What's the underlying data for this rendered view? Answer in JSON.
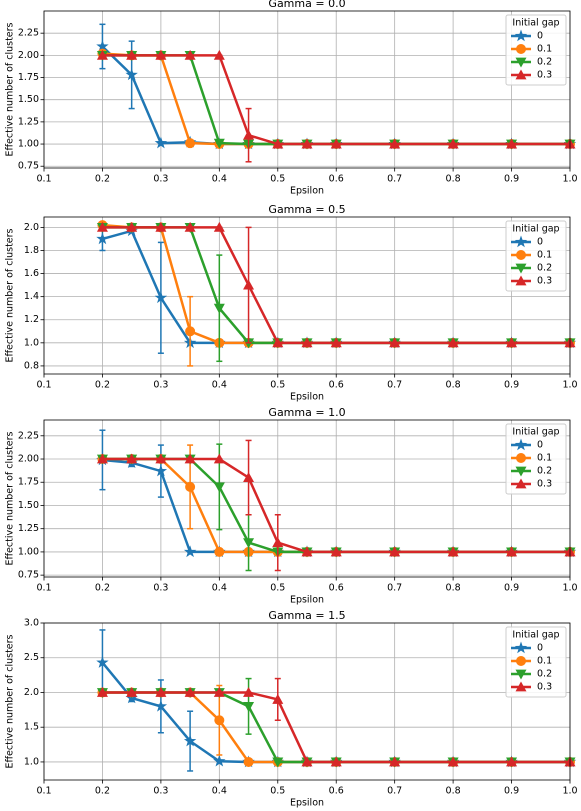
{
  "chart_data": [
    {
      "type": "line",
      "title": "Gamma = 0.0",
      "xlabel": "Epsilon",
      "ylabel": "Effective number of clusters",
      "x": [
        0.2,
        0.25,
        0.3,
        0.35,
        0.4,
        0.45,
        0.5,
        0.55,
        0.6,
        0.7,
        0.8,
        0.9,
        1.0
      ],
      "xlim": [
        0.1,
        1.0
      ],
      "xticks": [
        0.1,
        0.2,
        0.3,
        0.4,
        0.5,
        0.6,
        0.7,
        0.8,
        0.9,
        {
          "value": 1,
          "label": "1.0"
        }
      ],
      "ylim": [
        0.73,
        2.5
      ],
      "yticks": [
        0.75,
        {
          "value": 1,
          "label": "1.00"
        },
        1.25,
        {
          "value": 1.5,
          "label": "1.50"
        },
        1.75,
        {
          "value": 2,
          "label": "2.00"
        },
        2.25
      ],
      "grid": true,
      "legend_title": "Initial gap",
      "legend": "upper right",
      "series": [
        {
          "name": "0",
          "color": "#1f77b4",
          "marker": "star",
          "values": [
            2.1,
            1.78,
            1.01,
            1.02,
            1.0,
            1.0,
            1.0,
            1.0,
            1.0,
            1.0,
            1.0,
            1.0,
            1.0
          ],
          "errors": [
            0.25,
            0.38,
            0,
            0,
            0,
            0,
            0,
            0,
            0,
            0,
            0,
            0,
            0
          ]
        },
        {
          "name": "0.1",
          "color": "#ff7f0e",
          "marker": "circle",
          "values": [
            2.02,
            2.0,
            2.0,
            1.01,
            1.0,
            1.0,
            1.0,
            1.0,
            1.0,
            1.0,
            1.0,
            1.0,
            1.0
          ],
          "errors": [
            0,
            0,
            0,
            0,
            0,
            0,
            0,
            0,
            0,
            0,
            0,
            0,
            0
          ]
        },
        {
          "name": "0.2",
          "color": "#2ca02c",
          "marker": "triangle-down",
          "values": [
            2.0,
            2.0,
            2.0,
            2.0,
            1.01,
            1.0,
            1.0,
            1.0,
            1.0,
            1.0,
            1.0,
            1.0,
            1.0
          ],
          "errors": [
            0,
            0,
            0,
            0,
            0,
            0,
            0,
            0,
            0,
            0,
            0,
            0,
            0
          ]
        },
        {
          "name": "0.3",
          "color": "#d62728",
          "marker": "triangle-up",
          "values": [
            2.0,
            2.0,
            2.0,
            2.0,
            2.0,
            1.1,
            1.0,
            1.0,
            1.0,
            1.0,
            1.0,
            1.0,
            1.0
          ],
          "errors": [
            0,
            0,
            0,
            0,
            0,
            0.3,
            0,
            0,
            0,
            0,
            0,
            0,
            0
          ]
        }
      ]
    },
    {
      "type": "line",
      "title": "Gamma = 0.5",
      "xlabel": "Epsilon",
      "ylabel": "Effective number of clusters",
      "x": [
        0.2,
        0.25,
        0.3,
        0.35,
        0.4,
        0.45,
        0.5,
        0.55,
        0.6,
        0.7,
        0.8,
        0.9,
        1.0
      ],
      "xlim": [
        0.1,
        1.0
      ],
      "xticks": [
        0.1,
        0.2,
        0.3,
        0.4,
        0.5,
        0.6,
        0.7,
        0.8,
        0.9,
        {
          "value": 1,
          "label": "1.0"
        }
      ],
      "ylim": [
        0.73,
        2.09
      ],
      "yticks": [
        0.8,
        {
          "value": 1,
          "label": "1.0"
        },
        1.2,
        1.4,
        1.6,
        1.8,
        {
          "value": 2,
          "label": "2.0"
        }
      ],
      "grid": true,
      "legend_title": "Initial gap",
      "legend": "upper right",
      "series": [
        {
          "name": "0",
          "color": "#1f77b4",
          "marker": "star",
          "values": [
            1.9,
            1.97,
            1.39,
            1.0,
            1.0,
            1.0,
            1.0,
            1.0,
            1.0,
            1.0,
            1.0,
            1.0,
            1.0
          ],
          "errors": [
            0.1,
            0,
            0.48,
            0,
            0,
            0,
            0,
            0,
            0,
            0,
            0,
            0,
            0
          ]
        },
        {
          "name": "0.1",
          "color": "#ff7f0e",
          "marker": "circle",
          "values": [
            2.02,
            2.0,
            2.0,
            1.1,
            1.0,
            1.0,
            1.0,
            1.0,
            1.0,
            1.0,
            1.0,
            1.0,
            1.0
          ],
          "errors": [
            0,
            0,
            0,
            0.3,
            0,
            0,
            0,
            0,
            0,
            0,
            0,
            0,
            0
          ]
        },
        {
          "name": "0.2",
          "color": "#2ca02c",
          "marker": "triangle-down",
          "values": [
            2.0,
            2.0,
            2.0,
            2.0,
            1.3,
            1.0,
            1.0,
            1.0,
            1.0,
            1.0,
            1.0,
            1.0,
            1.0
          ],
          "errors": [
            0,
            0,
            0,
            0,
            0.46,
            0,
            0,
            0,
            0,
            0,
            0,
            0,
            0
          ]
        },
        {
          "name": "0.3",
          "color": "#d62728",
          "marker": "triangle-up",
          "values": [
            2.0,
            2.0,
            2.0,
            2.0,
            2.0,
            1.5,
            1.0,
            1.0,
            1.0,
            1.0,
            1.0,
            1.0,
            1.0
          ],
          "errors": [
            0,
            0,
            0,
            0,
            0,
            0.5,
            0,
            0,
            0,
            0,
            0,
            0,
            0
          ]
        }
      ]
    },
    {
      "type": "line",
      "title": "Gamma = 1.0",
      "xlabel": "Epsilon",
      "ylabel": "Effective number of clusters",
      "x": [
        0.2,
        0.25,
        0.3,
        0.35,
        0.4,
        0.45,
        0.5,
        0.55,
        0.6,
        0.7,
        0.8,
        0.9,
        1.0
      ],
      "xlim": [
        0.1,
        1.0
      ],
      "xticks": [
        0.1,
        0.2,
        0.3,
        0.4,
        0.5,
        0.6,
        0.7,
        0.8,
        0.9,
        {
          "value": 1,
          "label": "1.0"
        }
      ],
      "ylim": [
        0.73,
        2.42
      ],
      "yticks": [
        0.75,
        {
          "value": 1,
          "label": "1.00"
        },
        1.25,
        {
          "value": 1.5,
          "label": "1.50"
        },
        1.75,
        {
          "value": 2,
          "label": "2.00"
        },
        2.25
      ],
      "grid": true,
      "legend_title": "Initial gap",
      "legend": "upper right",
      "series": [
        {
          "name": "0",
          "color": "#1f77b4",
          "marker": "star",
          "values": [
            1.99,
            1.96,
            1.87,
            1.0,
            1.0,
            1.0,
            1.0,
            1.0,
            1.0,
            1.0,
            1.0,
            1.0,
            1.0
          ],
          "errors": [
            0.32,
            0.04,
            0.28,
            0,
            0,
            0,
            0,
            0,
            0,
            0,
            0,
            0,
            0
          ]
        },
        {
          "name": "0.1",
          "color": "#ff7f0e",
          "marker": "circle",
          "values": [
            2.0,
            2.0,
            2.0,
            1.7,
            1.0,
            1.0,
            1.0,
            1.0,
            1.0,
            1.0,
            1.0,
            1.0,
            1.0
          ],
          "errors": [
            0,
            0,
            0,
            0.45,
            0,
            0,
            0,
            0,
            0,
            0,
            0,
            0,
            0
          ]
        },
        {
          "name": "0.2",
          "color": "#2ca02c",
          "marker": "triangle-down",
          "values": [
            2.0,
            2.0,
            2.0,
            2.0,
            1.7,
            1.1,
            1.0,
            1.0,
            1.0,
            1.0,
            1.0,
            1.0,
            1.0
          ],
          "errors": [
            0,
            0,
            0,
            0,
            0.46,
            0.3,
            0,
            0,
            0,
            0,
            0,
            0,
            0
          ]
        },
        {
          "name": "0.3",
          "color": "#d62728",
          "marker": "triangle-up",
          "values": [
            2.0,
            2.0,
            2.0,
            2.0,
            2.0,
            1.8,
            1.1,
            1.0,
            1.0,
            1.0,
            1.0,
            1.0,
            1.0
          ],
          "errors": [
            0,
            0,
            0,
            0,
            0,
            0.4,
            0.3,
            0,
            0,
            0,
            0,
            0,
            0
          ]
        }
      ]
    },
    {
      "type": "line",
      "title": "Gamma = 1.5",
      "xlabel": "Epsilon",
      "ylabel": "Effective number of clusters",
      "x": [
        0.2,
        0.25,
        0.3,
        0.35,
        0.4,
        0.45,
        0.5,
        0.55,
        0.6,
        0.7,
        0.8,
        0.9,
        1.0
      ],
      "xlim": [
        0.1,
        1.0
      ],
      "xticks": [
        0.1,
        0.2,
        0.3,
        0.4,
        0.5,
        0.6,
        0.7,
        0.8,
        0.9,
        {
          "value": 1,
          "label": "1.0"
        }
      ],
      "ylim": [
        0.74,
        3.0
      ],
      "yticks": [
        {
          "value": 1,
          "label": "1.0"
        },
        1.5,
        {
          "value": 2,
          "label": "2.0"
        },
        2.5,
        {
          "value": 3,
          "label": "3.0"
        }
      ],
      "grid": true,
      "legend_title": "Initial gap",
      "legend": "upper right",
      "series": [
        {
          "name": "0",
          "color": "#1f77b4",
          "marker": "star",
          "values": [
            2.43,
            1.92,
            1.8,
            1.3,
            1.01,
            1.0,
            1.0,
            1.0,
            1.0,
            1.0,
            1.0,
            1.0,
            1.0
          ],
          "errors": [
            0.47,
            0.05,
            0.38,
            0.43,
            0,
            0,
            0,
            0,
            0,
            0,
            0,
            0,
            0
          ]
        },
        {
          "name": "0.1",
          "color": "#ff7f0e",
          "marker": "circle",
          "values": [
            2.0,
            2.0,
            2.0,
            2.0,
            1.6,
            1.0,
            1.0,
            1.0,
            1.0,
            1.0,
            1.0,
            1.0,
            1.0
          ],
          "errors": [
            0,
            0,
            0,
            0,
            0.5,
            0,
            0,
            0,
            0,
            0,
            0,
            0,
            0
          ]
        },
        {
          "name": "0.2",
          "color": "#2ca02c",
          "marker": "triangle-down",
          "values": [
            2.0,
            2.0,
            2.0,
            2.0,
            2.0,
            1.8,
            1.0,
            1.0,
            1.0,
            1.0,
            1.0,
            1.0,
            1.0
          ],
          "errors": [
            0,
            0,
            0,
            0,
            0,
            0.4,
            0,
            0,
            0,
            0,
            0,
            0,
            0
          ]
        },
        {
          "name": "0.3",
          "color": "#d62728",
          "marker": "triangle-up",
          "values": [
            2.0,
            2.0,
            2.0,
            2.0,
            2.0,
            2.0,
            1.9,
            1.0,
            1.0,
            1.0,
            1.0,
            1.0,
            1.0
          ],
          "errors": [
            0,
            0,
            0,
            0,
            0,
            0,
            0.3,
            0,
            0,
            0,
            0,
            0,
            0
          ]
        }
      ]
    }
  ]
}
